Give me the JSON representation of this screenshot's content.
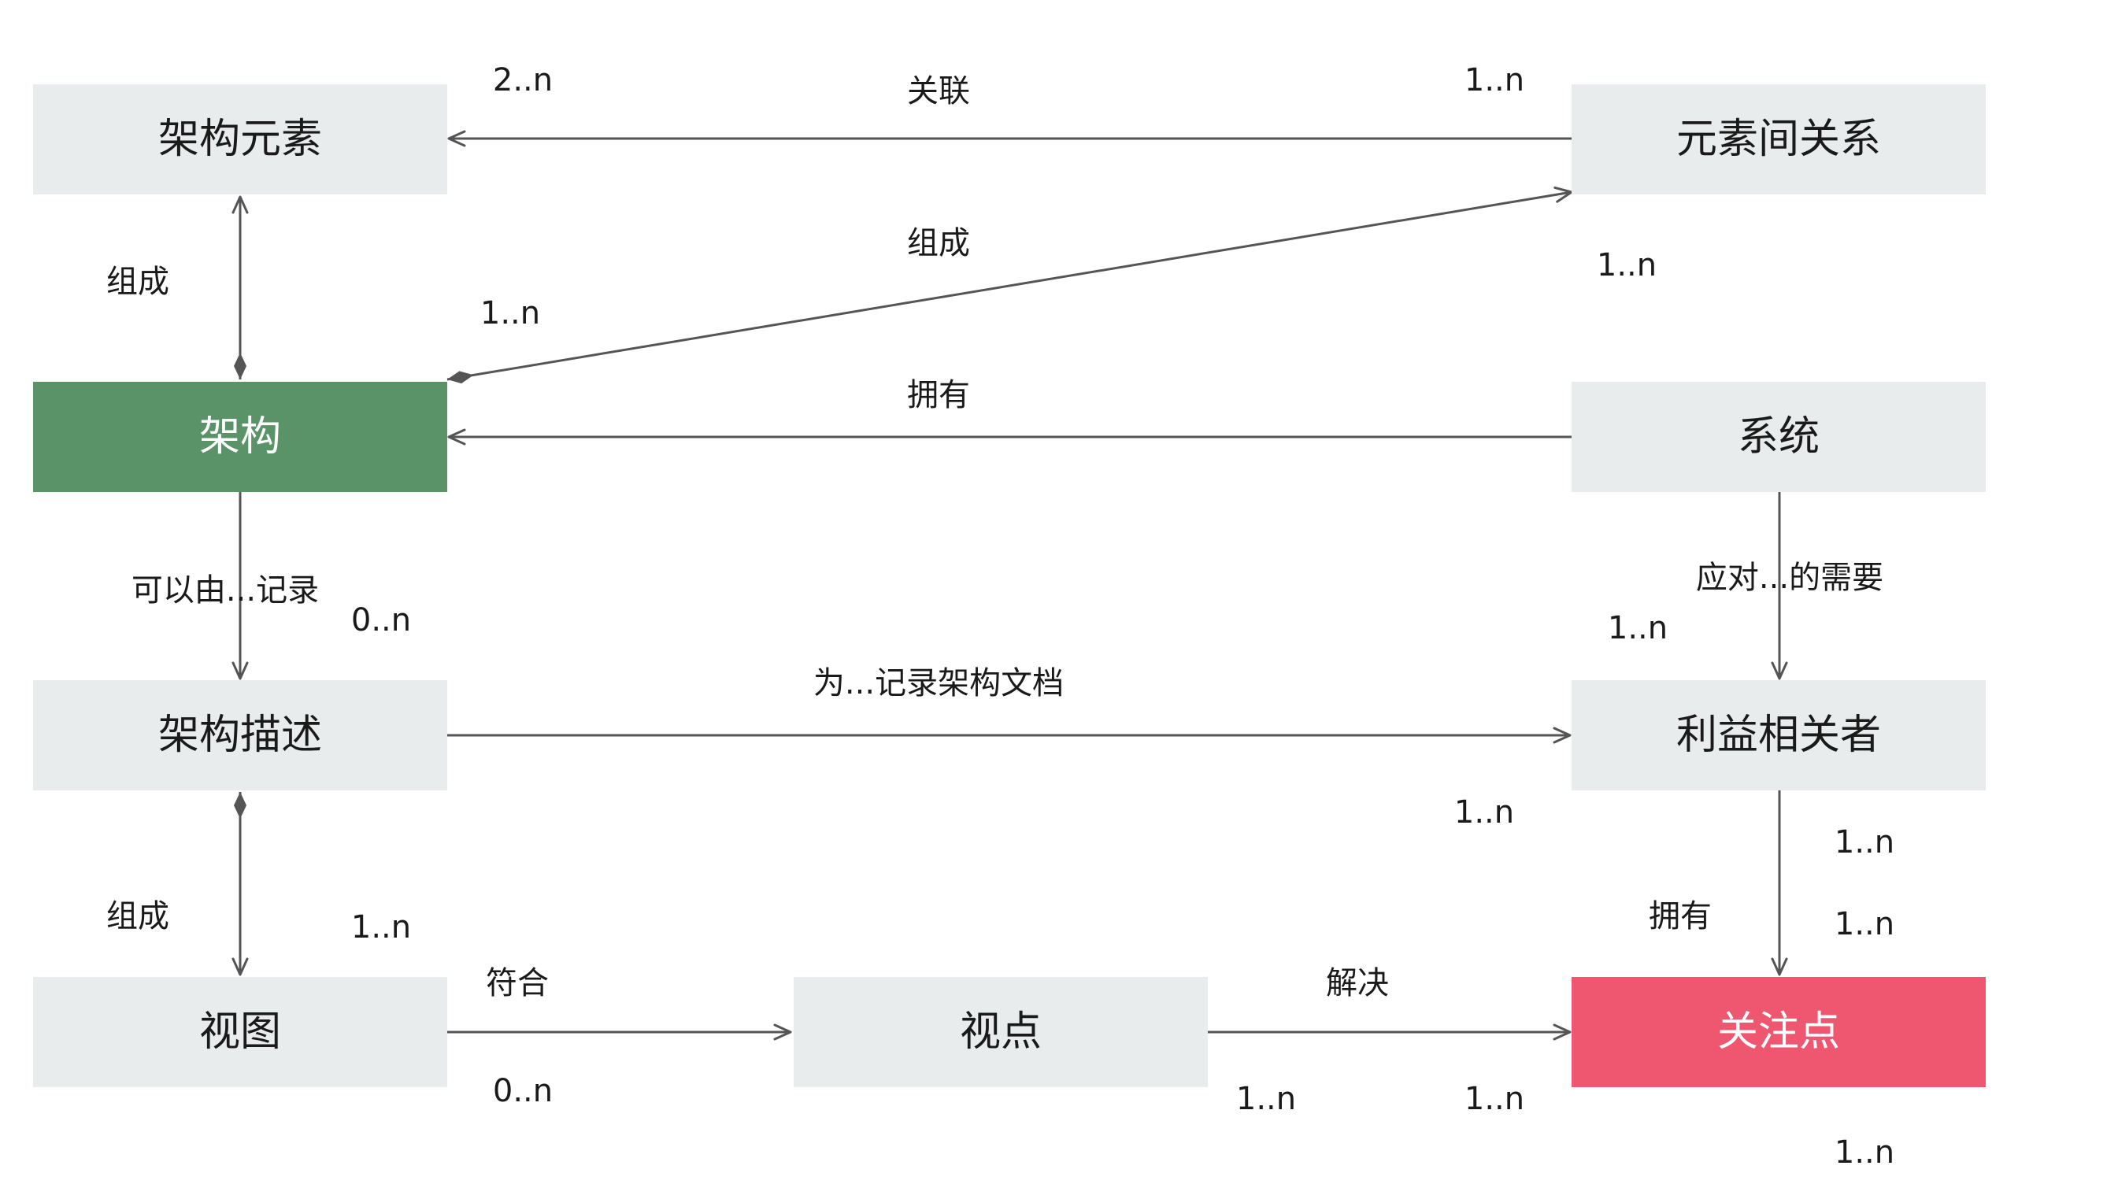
{
  "nodes": {
    "element": "架构元素",
    "relation": "元素间关系",
    "architecture": "架构",
    "system": "系统",
    "description": "架构描述",
    "stakeholder": "利益相关者",
    "view": "视图",
    "viewpoint": "视点",
    "concern": "关注点"
  },
  "edges": {
    "associate": "关联",
    "compose_element": "组成",
    "compose_relation": "组成",
    "own_system": "拥有",
    "documented_by": "可以由...记录",
    "address_needs": "应对...的需要",
    "document_for": "为...记录架构文档",
    "compose_view": "组成",
    "own_concern": "拥有",
    "conform": "符合",
    "resolve": "解决"
  },
  "multiplicities": {
    "m1": "2..n",
    "m2": "1..n",
    "m3": "1..n",
    "m4": "1..n",
    "m5": "0..n",
    "m6": "1..n",
    "m7": "1..n",
    "m8": "1..n",
    "m9": "1..n",
    "m10": "1..n",
    "m11": "0..n",
    "m12": "1..n",
    "m13": "1..n",
    "m14": "1..n"
  },
  "colors": {
    "node_fill": "#e8eced",
    "architecture_fill": "#5b9368",
    "concern_fill": "#ef5670",
    "edge": "#555555"
  }
}
